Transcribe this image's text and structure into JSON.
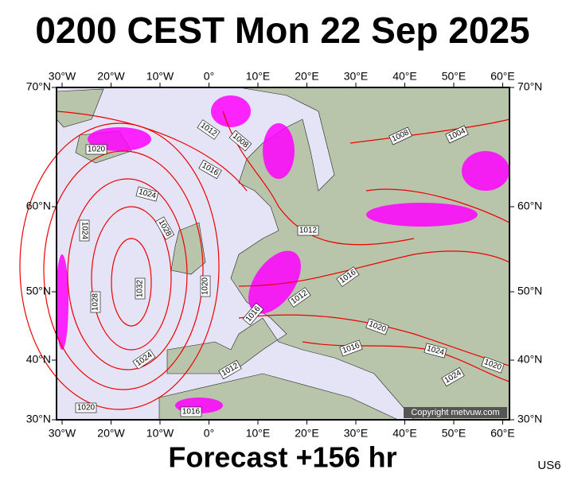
{
  "header": {
    "title": "0200 CEST Mon 22 Sep 2025"
  },
  "footer": {
    "forecast": "Forecast +156 hr",
    "code": "US6"
  },
  "map": {
    "longitudes": [
      "30°W",
      "20°W",
      "10°W",
      "0°",
      "10°E",
      "20°E",
      "30°E",
      "40°E",
      "50°E",
      "60°E"
    ],
    "latitudes": [
      "70°N",
      "60°N",
      "50°N",
      "40°N",
      "30°N"
    ],
    "isobar_labels": [
      "1020",
      "1012",
      "1008",
      "1016",
      "1024",
      "1028",
      "1024",
      "1032",
      "1020",
      "1028",
      "1024",
      "1012",
      "1020",
      "1016",
      "1016",
      "1012",
      "1012",
      "1016",
      "1020",
      "1016",
      "1024",
      "1024",
      "1020",
      "1008",
      "1004"
    ],
    "copyright": "Copyright metvuw.com"
  }
}
